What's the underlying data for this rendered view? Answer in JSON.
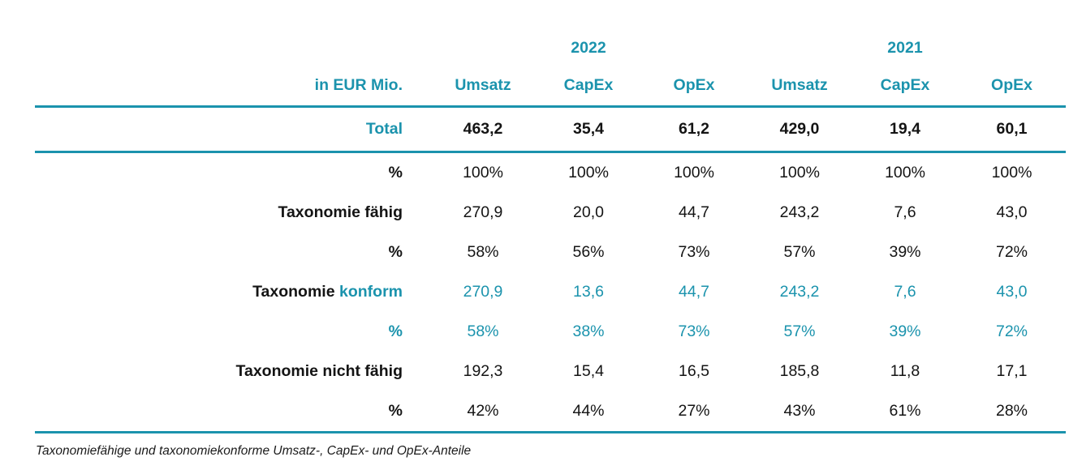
{
  "colors": {
    "accent_teal": "#1B93AD",
    "text_black": "#141414"
  },
  "header": {
    "unit_label": "in EUR Mio.",
    "year_2022": "2022",
    "year_2021": "2021",
    "columns": [
      "Umsatz",
      "CapEx",
      "OpEx",
      "Umsatz",
      "CapEx",
      "OpEx"
    ]
  },
  "total": {
    "label": "Total",
    "values": [
      "463,2",
      "35,4",
      "61,2",
      "429,0",
      "19,4",
      "60,1"
    ]
  },
  "rows": [
    {
      "label": "%",
      "values": [
        "100%",
        "100%",
        "100%",
        "100%",
        "100%",
        "100%"
      ]
    },
    {
      "label": "Taxonomie fähig",
      "values": [
        "270,9",
        "20,0",
        "44,7",
        "243,2",
        "7,6",
        "43,0"
      ]
    },
    {
      "label": "%",
      "values": [
        "58%",
        "56%",
        "73%",
        "57%",
        "39%",
        "72%"
      ]
    },
    {
      "label_black": "Taxonomie",
      "label_accent": "konform",
      "values": [
        "270,9",
        "13,6",
        "44,7",
        "243,2",
        "7,6",
        "43,0"
      ]
    },
    {
      "label": "%",
      "values": [
        "58%",
        "38%",
        "73%",
        "57%",
        "39%",
        "72%"
      ]
    },
    {
      "label": "Taxonomie nicht fähig",
      "values": [
        "192,3",
        "15,4",
        "16,5",
        "185,8",
        "11,8",
        "17,1"
      ]
    },
    {
      "label": "%",
      "values": [
        "42%",
        "44%",
        "27%",
        "43%",
        "61%",
        "28%"
      ]
    }
  ],
  "caption": "Taxonomiefähige und taxonomiekonforme Umsatz-, CapEx- und OpEx-Anteile"
}
